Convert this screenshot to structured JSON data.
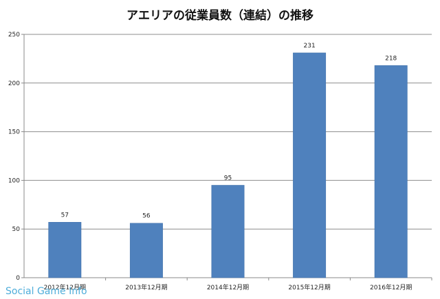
{
  "chart_data": {
    "type": "bar",
    "title": "アエリアの従業員数（連結）の推移",
    "categories": [
      "2012年12月期",
      "2013年12月期",
      "2014年12月期",
      "2015年12月期",
      "2016年12月期"
    ],
    "values": [
      57,
      56,
      95,
      231,
      218
    ],
    "ylim": [
      0,
      250
    ],
    "yticks": [
      0,
      50,
      100,
      150,
      200,
      250
    ],
    "grid": true,
    "legend": "none",
    "bar_color": "#4f81bd"
  },
  "watermark": {
    "text": "Social Game Info"
  }
}
